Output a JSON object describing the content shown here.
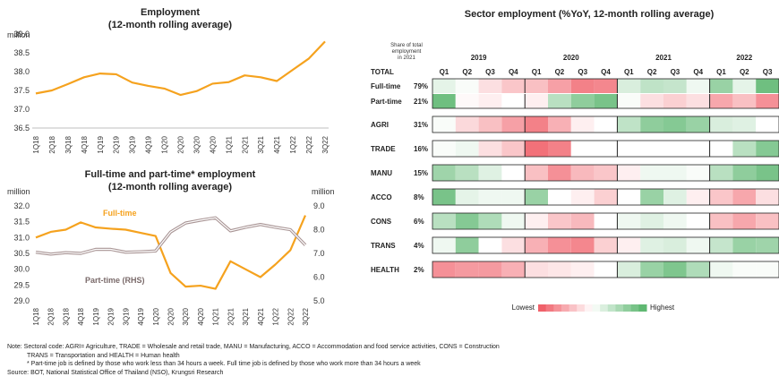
{
  "chart_data": [
    {
      "type": "line",
      "title": "Employment",
      "subtitle": "(12-month rolling average)",
      "ylabel": "million",
      "ylim": [
        36.5,
        39.0
      ],
      "yticks": [
        "36.5",
        "37.0",
        "37.5",
        "38.0",
        "38.5",
        "39.0"
      ],
      "categories": [
        "1Q18",
        "2Q18",
        "3Q18",
        "4Q18",
        "1Q19",
        "2Q19",
        "3Q19",
        "4Q19",
        "1Q20",
        "2Q20",
        "3Q20",
        "4Q20",
        "1Q21",
        "2Q21",
        "3Q21",
        "4Q21",
        "1Q22",
        "2Q22",
        "3Q22"
      ],
      "series": [
        {
          "color": "#f5a21e",
          "values": [
            37.42,
            37.5,
            37.67,
            37.85,
            37.95,
            37.93,
            37.71,
            37.62,
            37.55,
            37.38,
            37.48,
            37.68,
            37.72,
            37.9,
            37.85,
            37.75,
            38.05,
            38.35,
            38.8
          ]
        }
      ]
    },
    {
      "type": "line",
      "title": "Full-time and part-time* employment",
      "subtitle": "(12-month rolling average)",
      "ylabel": "million",
      "y2label": "million",
      "ylim": [
        29.0,
        32.0
      ],
      "y2lim": [
        5.0,
        9.0
      ],
      "yticks": [
        "29.0",
        "29.5",
        "30.0",
        "30.5",
        "31.0",
        "31.5",
        "32.0"
      ],
      "y2ticks": [
        "5.0",
        "6.0",
        "7.0",
        "8.0",
        "9.0"
      ],
      "categories": [
        "1Q18",
        "2Q18",
        "3Q18",
        "4Q18",
        "1Q19",
        "2Q19",
        "3Q19",
        "4Q19",
        "1Q20",
        "2Q20",
        "3Q20",
        "4Q20",
        "1Q21",
        "2Q21",
        "3Q21",
        "4Q21",
        "1Q22",
        "2Q22",
        "3Q22"
      ],
      "series": [
        {
          "name": "Full-time",
          "axis": "left",
          "color": "#f5a21e",
          "values": [
            31.0,
            31.18,
            31.25,
            31.48,
            31.32,
            31.28,
            31.25,
            31.15,
            31.05,
            29.88,
            29.45,
            29.48,
            29.38,
            30.25,
            30.0,
            29.75,
            30.15,
            30.6,
            31.7
          ]
        },
        {
          "name": "Part-time (RHS)",
          "axis": "right",
          "color": "#a89494",
          "values": [
            7.05,
            6.97,
            7.03,
            7.0,
            7.17,
            7.17,
            7.05,
            7.07,
            7.1,
            7.9,
            8.28,
            8.4,
            8.5,
            7.95,
            8.1,
            8.22,
            8.1,
            8.0,
            7.35
          ]
        }
      ]
    },
    {
      "type": "heatmap",
      "title": "Sector employment (%YoY, 12-month rolling average)",
      "share_header": [
        "Share of total",
        "employment",
        "in 2021"
      ],
      "years": [
        "2019",
        "2020",
        "2021",
        "2022"
      ],
      "quarters": [
        "Q1",
        "Q2",
        "Q3",
        "Q4",
        "Q1",
        "Q2",
        "Q3",
        "Q4",
        "Q1",
        "Q2",
        "Q3",
        "Q4",
        "Q1",
        "Q2",
        "Q3"
      ],
      "total_label": "TOTAL",
      "rows": [
        {
          "label": "Full-time",
          "share": "79%",
          "values": [
            0.58,
            0.52,
            0.4,
            0.32,
            0.3,
            0.2,
            0.1,
            0.12,
            0.62,
            0.7,
            0.68,
            0.55,
            0.82,
            0.58,
            0.95
          ]
        },
        {
          "label": "Part-time",
          "share": "21%",
          "values": [
            0.95,
            0.48,
            0.45,
            0.5,
            0.45,
            0.72,
            0.85,
            0.92,
            0.52,
            0.4,
            0.35,
            0.4,
            0.22,
            0.3,
            0.15
          ]
        },
        {
          "label": "AGRI",
          "share": "31%",
          "values": [
            0.52,
            0.38,
            0.3,
            0.2,
            0.1,
            0.25,
            0.45,
            0.5,
            0.7,
            0.85,
            0.88,
            0.82,
            0.62,
            0.6,
            0.5
          ]
        },
        {
          "label": "TRADE",
          "share": "16%",
          "values": [
            0.52,
            0.55,
            0.4,
            0.32,
            0.05,
            0.1,
            0.5,
            0.5,
            0.5,
            0.5,
            0.5,
            0.5,
            0.5,
            0.72,
            0.88
          ]
        },
        {
          "label": "MANU",
          "share": "15%",
          "values": [
            0.8,
            0.72,
            0.6,
            0.5,
            0.3,
            0.15,
            0.28,
            0.32,
            0.45,
            0.55,
            0.55,
            0.52,
            0.72,
            0.85,
            0.92
          ]
        },
        {
          "label": "ACCO",
          "share": "8%",
          "values": [
            0.92,
            0.58,
            0.55,
            0.55,
            0.82,
            0.5,
            0.45,
            0.35,
            0.5,
            0.82,
            0.6,
            0.45,
            0.32,
            0.22,
            0.4
          ]
        },
        {
          "label": "CONS",
          "share": "6%",
          "values": [
            0.72,
            0.88,
            0.75,
            0.55,
            0.45,
            0.32,
            0.28,
            0.5,
            0.55,
            0.6,
            0.55,
            0.5,
            0.3,
            0.22,
            0.3
          ]
        },
        {
          "label": "TRANS",
          "share": "4%",
          "values": [
            0.55,
            0.85,
            0.5,
            0.4,
            0.25,
            0.15,
            0.12,
            0.35,
            0.45,
            0.6,
            0.62,
            0.55,
            0.68,
            0.82,
            0.8
          ]
        },
        {
          "label": "HEALTH",
          "share": "2%",
          "values": [
            0.15,
            0.18,
            0.18,
            0.25,
            0.4,
            0.42,
            0.45,
            0.5,
            0.62,
            0.82,
            0.9,
            0.75,
            0.55,
            0.52,
            0.52
          ]
        }
      ],
      "scale_low": "Lowest",
      "scale_high": "Highest",
      "low_color": "#f0616a",
      "high_color": "#5fb872"
    }
  ],
  "notes": {
    "line1": "Note: Sectoral code: AGRI= Agriculture, TRADE = Wholesale and retail trade, MANU = Manufacturing, ACCO = Accommodation and food service activities, CONS = Construction",
    "line2": "TRANS = Transportation and HEALTH = Human health",
    "line3": "* Part-time job is defined by those who work less than 34 hours a week. Full time job is defined by those who work  more than 34 hours a week",
    "source": "Source: BOT, National Statistical Office of Thailand (NSO), Krungsri Research"
  }
}
